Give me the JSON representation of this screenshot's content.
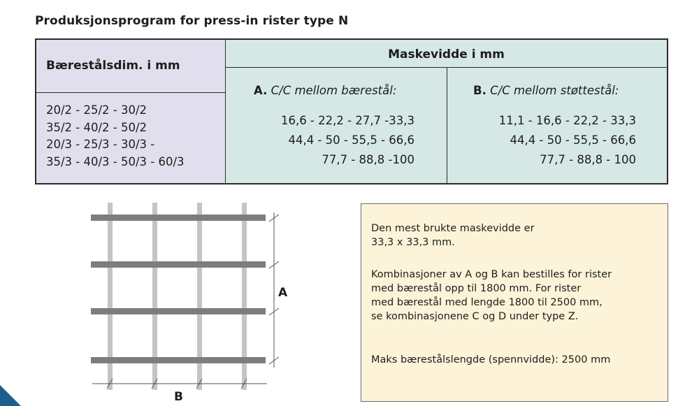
{
  "title": "Produksjonsprogram for press-in rister type N",
  "table": {
    "left_header": "Bærestålsdim. i mm",
    "dimensions": [
      "20/2 - 25/2 - 30/2",
      "35/2 - 40/2 - 50/2",
      "20/3 - 25/3 - 30/3 -",
      "35/3 - 40/3 - 50/3 - 60/3"
    ],
    "mesh_header": "Maskevidde i mm",
    "col_a": {
      "letter": "A.",
      "label": "C/C mellom bærestål:",
      "values": [
        "16,6 - 22,2 - 27,7 -33,3",
        "44,4 - 50 - 55,5 - 66,6",
        "77,7 - 88,8 -100"
      ]
    },
    "col_b": {
      "letter": "B.",
      "label": "C/C mellom støttestål:",
      "values": [
        "11,1 - 16,6 - 22,2 - 33,3",
        "44,4 - 50 - 55,5 - 66,6",
        "77,7 - 88,8 - 100"
      ]
    }
  },
  "diagram": {
    "label_a": "A",
    "label_b": "B"
  },
  "note": {
    "p1": "Den mest brukte maskevidde er\n33,3 x 33,3 mm.",
    "p2": "Kombinasjoner av A og B kan bestilles for rister\nmed bærestål opp til 1800 mm. For rister\nmed bærestål med lengde 1800 til 2500 mm,\nse kombinasjonene C og D under type Z.",
    "p3": "Maks bærestålslengde (spennvidde): 2500 mm"
  },
  "colors": {
    "left_fill": "#e1dfee",
    "mesh_fill": "#d5e8e5",
    "note_fill": "#fdf3d8",
    "bar_dark": "#7d7d7d",
    "bar_light": "#c4c4c4",
    "corner_blue": "#1f5e8c"
  }
}
